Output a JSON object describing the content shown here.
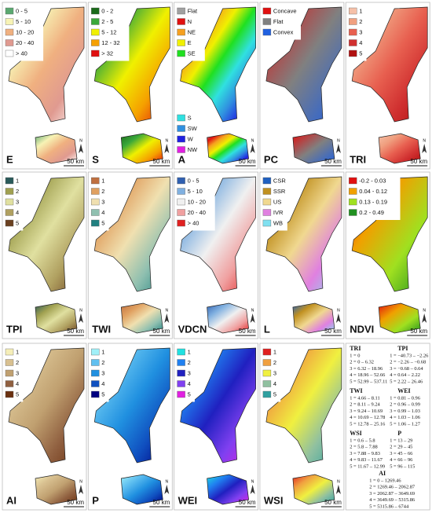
{
  "panels": [
    {
      "label": "E",
      "legends": [
        [
          {
            "label": "0 - 5",
            "color": "#5aa870"
          },
          {
            "label": "5 - 10",
            "color": "#f7f3b5"
          },
          {
            "label": "10 - 20",
            "color": "#f0b080"
          },
          {
            "label": "20 - 40",
            "color": "#e09a90"
          },
          {
            "label": "> 40",
            "color": "#ffffff"
          }
        ]
      ]
    },
    {
      "label": "S",
      "legends": [
        [
          {
            "label": "0 - 2",
            "color": "#1a6a1a"
          },
          {
            "label": "2 - 5",
            "color": "#3aa83a"
          },
          {
            "label": "5 - 12",
            "color": "#f0f000"
          },
          {
            "label": "12 - 32",
            "color": "#f5a000"
          },
          {
            "label": "> 32",
            "color": "#e01010"
          }
        ]
      ]
    },
    {
      "label": "A",
      "legends": [
        [
          {
            "label": "Flat",
            "color": "#a0a0a0"
          },
          {
            "label": "N",
            "color": "#e01010"
          },
          {
            "label": "NE",
            "color": "#f5a020"
          },
          {
            "label": "E",
            "color": "#f0f000"
          },
          {
            "label": "SE",
            "color": "#20e020"
          }
        ],
        [
          {
            "label": "S",
            "color": "#30e0e0"
          },
          {
            "label": "SW",
            "color": "#3090e0"
          },
          {
            "label": "W",
            "color": "#2020e0"
          },
          {
            "label": "NW",
            "color": "#e020e0"
          }
        ]
      ]
    },
    {
      "label": "PC",
      "legends": [
        [
          {
            "label": "Concave",
            "color": "#e01010"
          },
          {
            "label": "Flat",
            "color": "#808080"
          },
          {
            "label": "Convex",
            "color": "#2060e0"
          }
        ]
      ]
    },
    {
      "label": "TRI",
      "legends": [
        [
          {
            "label": "1",
            "color": "#f5c0a8"
          },
          {
            "label": "2",
            "color": "#f0a080"
          },
          {
            "label": "3",
            "color": "#e86050"
          },
          {
            "label": "4",
            "color": "#d03030"
          },
          {
            "label": "5",
            "color": "#b01010"
          }
        ]
      ]
    },
    {
      "label": "TPI",
      "legends": [
        [
          {
            "label": "1",
            "color": "#2a5a5a"
          },
          {
            "label": "2",
            "color": "#a0a050"
          },
          {
            "label": "3",
            "color": "#e0e0a0"
          },
          {
            "label": "4",
            "color": "#b0a060"
          },
          {
            "label": "5",
            "color": "#6a4020"
          }
        ]
      ]
    },
    {
      "label": "TWI",
      "legends": [
        [
          {
            "label": "1",
            "color": "#c07040"
          },
          {
            "label": "2",
            "color": "#e0a060"
          },
          {
            "label": "3",
            "color": "#f0e0b0"
          },
          {
            "label": "4",
            "color": "#90c0b0"
          },
          {
            "label": "5",
            "color": "#208080"
          }
        ]
      ]
    },
    {
      "label": "VDCN",
      "legends": [
        [
          {
            "label": "0 - 5",
            "color": "#3060b0"
          },
          {
            "label": "5 - 10",
            "color": "#80b0e0"
          },
          {
            "label": "10 - 20",
            "color": "#f0f0f0"
          },
          {
            "label": "20 - 40",
            "color": "#f0a0a0"
          },
          {
            "label": "> 40",
            "color": "#e02020"
          }
        ]
      ]
    },
    {
      "label": "L",
      "legends": [
        [
          {
            "label": "CSR",
            "color": "#2060c0"
          },
          {
            "label": "SSR",
            "color": "#c09020"
          },
          {
            "label": "US",
            "color": "#f0d890"
          },
          {
            "label": "IVR",
            "color": "#e080e0"
          },
          {
            "label": "WB",
            "color": "#80e0f0"
          }
        ]
      ]
    },
    {
      "label": "NDVI",
      "legends": [
        [
          {
            "label": "-0.2 - 0.03",
            "color": "#e01010"
          },
          {
            "label": "0.04 - 0.12",
            "color": "#f0a000"
          },
          {
            "label": "0.13 - 0.19",
            "color": "#a0e020"
          },
          {
            "label": "0.2 - 0.49",
            "color": "#209020"
          }
        ]
      ]
    },
    {
      "label": "AI",
      "legends": [
        [
          {
            "label": "1",
            "color": "#f5eeb8"
          },
          {
            "label": "2",
            "color": "#d8c090"
          },
          {
            "label": "3",
            "color": "#c0a070"
          },
          {
            "label": "4",
            "color": "#906040"
          },
          {
            "label": "5",
            "color": "#6a3010"
          }
        ]
      ]
    },
    {
      "label": "P",
      "legends": [
        [
          {
            "label": "1",
            "color": "#a0f0f8"
          },
          {
            "label": "2",
            "color": "#60c0f0"
          },
          {
            "label": "3",
            "color": "#2090e0"
          },
          {
            "label": "4",
            "color": "#1050c0"
          },
          {
            "label": "5",
            "color": "#000080"
          }
        ]
      ]
    },
    {
      "label": "WEI",
      "legends": [
        [
          {
            "label": "1",
            "color": "#20e0e0"
          },
          {
            "label": "2",
            "color": "#2080f0"
          },
          {
            "label": "3",
            "color": "#2020c0"
          },
          {
            "label": "4",
            "color": "#8040f0"
          },
          {
            "label": "5",
            "color": "#e020e0"
          }
        ]
      ]
    },
    {
      "label": "WSI",
      "legends": [
        [
          {
            "label": "1",
            "color": "#e02020"
          },
          {
            "label": "2",
            "color": "#f0a040"
          },
          {
            "label": "3",
            "color": "#f0f040"
          },
          {
            "label": "4",
            "color": "#90c0a0"
          },
          {
            "label": "5",
            "color": "#30a0a0"
          }
        ]
      ]
    }
  ],
  "scale_label": "50 km",
  "north_label": "N",
  "definitions": [
    {
      "title": "TRI",
      "lines": [
        "1 = 0",
        "2 = 0 – 6.32",
        "3 = 6.32 – 18.96",
        "4 = 18.96 – 52.66",
        "5 = 52.99 – 537.11"
      ]
    },
    {
      "title": "TPI",
      "lines": [
        "1 = −40.73 – −2.26",
        "2 = −2.26 – −0.68",
        "3 = −0.68 – 0.64",
        "4 = 0.64 – 2.22",
        "5 = 2.22 – 26.46"
      ]
    },
    {
      "title": "TWI",
      "lines": [
        "1 = 4.66 – 8.11",
        "2 = 8.11 – 9.24",
        "3 = 9.24 – 10.69",
        "4 = 10.69 – 12.78",
        "5 = 12.78 – 25.16"
      ]
    },
    {
      "title": "WEI",
      "lines": [
        "1 = 0.81 – 0.96",
        "2 = 0.96 – 0.99",
        "3 = 0.99 – 1.03",
        "4 = 1.03 – 1.06",
        "5 = 1.06 – 1.27"
      ]
    },
    {
      "title": "WSI",
      "lines": [
        "1 = 0.6 – 5.8",
        "2 = 5.8 – 7.88",
        "3 = 7.88 – 9.83",
        "4 = 9.83 – 11.67",
        "5 = 11.67 – 12.99"
      ]
    },
    {
      "title": "P",
      "lines": [
        "1 = 13 – 29",
        "2 = 29 – 45",
        "3 = 45 – 66",
        "4 = 66 – 96",
        "5 = 96 – 115"
      ]
    },
    {
      "title": "AI",
      "lines": [
        "1 = 0 – 1269.46",
        "2 = 1269.46 – 2062.87",
        "3 = 2062.87 – 3649.69",
        "4 = 3649.69 – 5315.86",
        "5 = 5315.86 – 6744"
      ]
    }
  ]
}
